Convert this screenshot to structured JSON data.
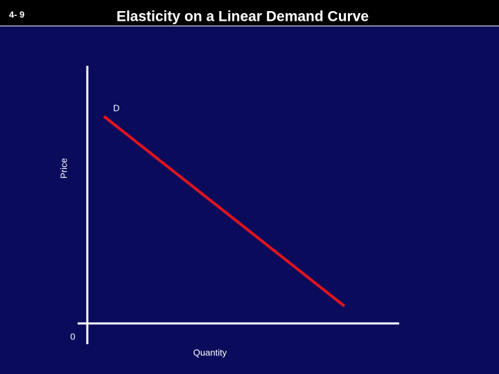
{
  "header": {
    "slide_number": "4- 9",
    "title": "Elasticity on a Linear Demand Curve"
  },
  "diagram": {
    "y_axis_label": "Price",
    "x_axis_label": "Quantity",
    "origin_label": "0",
    "curve_label": "D"
  }
}
